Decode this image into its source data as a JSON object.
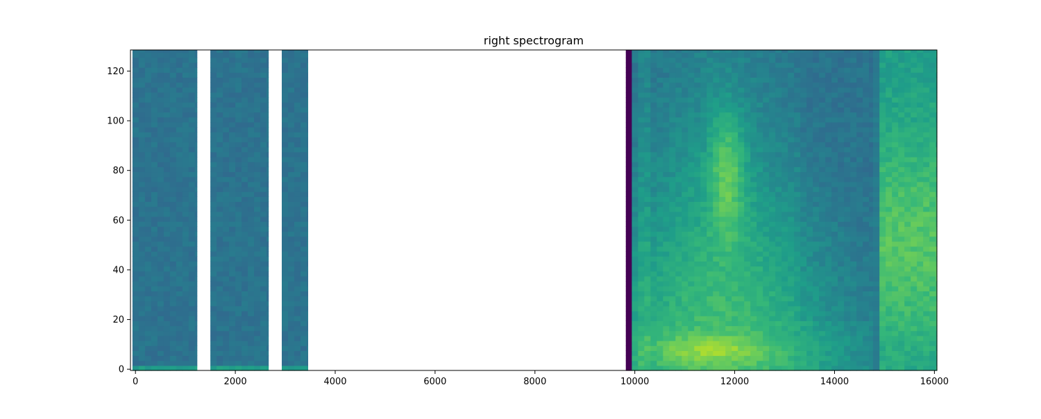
{
  "chart_data": {
    "type": "heatmap",
    "title": "right spectrogram",
    "xlabel": "",
    "ylabel": "",
    "xlim": [
      -100,
      16050
    ],
    "ylim": [
      -0.5,
      128.5
    ],
    "x_ticks": [
      0,
      2000,
      4000,
      6000,
      8000,
      10000,
      12000,
      14000,
      16000
    ],
    "x_tick_labels": [
      "0",
      "2000",
      "4000",
      "6000",
      "8000",
      "10000",
      "12000",
      "14000",
      "16000"
    ],
    "y_ticks": [
      0,
      20,
      40,
      60,
      80,
      100,
      120
    ],
    "y_tick_labels": [
      "0",
      "20",
      "40",
      "60",
      "80",
      "100",
      "120"
    ],
    "colormap": "viridis",
    "grid": false,
    "segments": [
      {
        "x_start": -60,
        "x_end": 1230,
        "kind": "noise"
      },
      {
        "x_start": 1500,
        "x_end": 2660,
        "kind": "noise"
      },
      {
        "x_start": 2930,
        "x_end": 3450,
        "kind": "noise"
      },
      {
        "x_start": 9820,
        "x_end": 9940,
        "kind": "silence"
      },
      {
        "x_start": 9940,
        "x_end": 14770,
        "kind": "speech"
      },
      {
        "x_start": 14770,
        "x_end": 14900,
        "kind": "low"
      },
      {
        "x_start": 14900,
        "x_end": 16050,
        "kind": "voiced"
      }
    ],
    "gaps": [
      [
        1230,
        1500
      ],
      [
        2660,
        2930
      ],
      [
        3450,
        9820
      ]
    ]
  }
}
